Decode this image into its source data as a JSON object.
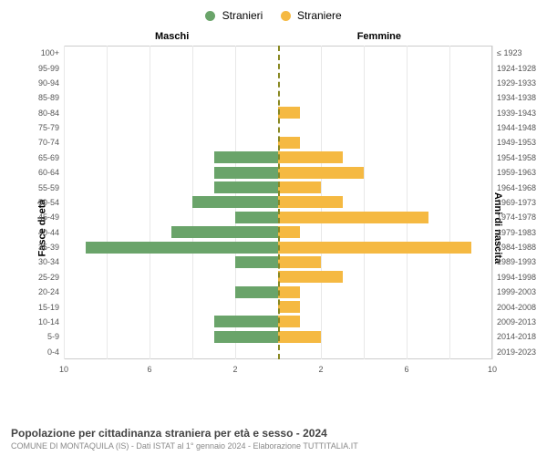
{
  "chart": {
    "type": "population_pyramid",
    "legend": {
      "male": {
        "label": "Stranieri",
        "color": "#6aa46a"
      },
      "female": {
        "label": "Straniere",
        "color": "#f5b942"
      }
    },
    "section_labels": {
      "left": "Maschi",
      "right": "Femmine"
    },
    "axis_labels": {
      "left": "Fasce di età",
      "right": "Anni di nascita"
    },
    "xlim": 10,
    "x_ticks_left": [
      10,
      6,
      2
    ],
    "x_ticks_right": [
      2,
      6,
      10
    ],
    "center_line_color": "#888822",
    "grid_color": "#e8e8e8",
    "background_color": "#ffffff",
    "rows": [
      {
        "age": "100+",
        "birth": "≤ 1923",
        "male": 0,
        "female": 0
      },
      {
        "age": "95-99",
        "birth": "1924-1928",
        "male": 0,
        "female": 0
      },
      {
        "age": "90-94",
        "birth": "1929-1933",
        "male": 0,
        "female": 0
      },
      {
        "age": "85-89",
        "birth": "1934-1938",
        "male": 0,
        "female": 0
      },
      {
        "age": "80-84",
        "birth": "1939-1943",
        "male": 0,
        "female": 1
      },
      {
        "age": "75-79",
        "birth": "1944-1948",
        "male": 0,
        "female": 0
      },
      {
        "age": "70-74",
        "birth": "1949-1953",
        "male": 0,
        "female": 1
      },
      {
        "age": "65-69",
        "birth": "1954-1958",
        "male": 3,
        "female": 3
      },
      {
        "age": "60-64",
        "birth": "1959-1963",
        "male": 3,
        "female": 4
      },
      {
        "age": "55-59",
        "birth": "1964-1968",
        "male": 3,
        "female": 2
      },
      {
        "age": "50-54",
        "birth": "1969-1973",
        "male": 4,
        "female": 3
      },
      {
        "age": "45-49",
        "birth": "1974-1978",
        "male": 2,
        "female": 7
      },
      {
        "age": "40-44",
        "birth": "1979-1983",
        "male": 5,
        "female": 1
      },
      {
        "age": "35-39",
        "birth": "1984-1988",
        "male": 9,
        "female": 9
      },
      {
        "age": "30-34",
        "birth": "1989-1993",
        "male": 2,
        "female": 2
      },
      {
        "age": "25-29",
        "birth": "1994-1998",
        "male": 0,
        "female": 3
      },
      {
        "age": "20-24",
        "birth": "1999-2003",
        "male": 2,
        "female": 1
      },
      {
        "age": "15-19",
        "birth": "2004-2008",
        "male": 0,
        "female": 1
      },
      {
        "age": "10-14",
        "birth": "2009-2013",
        "male": 3,
        "female": 1
      },
      {
        "age": "5-9",
        "birth": "2014-2018",
        "male": 3,
        "female": 2
      },
      {
        "age": "0-4",
        "birth": "2019-2023",
        "male": 0,
        "female": 0
      }
    ]
  },
  "footer": {
    "title": "Popolazione per cittadinanza straniera per età e sesso - 2024",
    "subtitle": "COMUNE DI MONTAQUILA (IS) - Dati ISTAT al 1° gennaio 2024 - Elaborazione TUTTITALIA.IT"
  }
}
